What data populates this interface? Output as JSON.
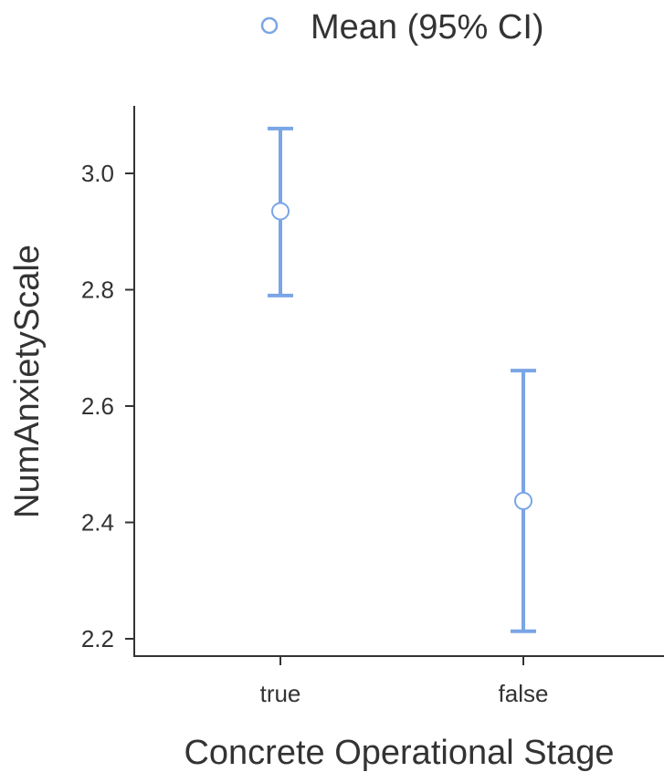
{
  "chart_data": {
    "type": "scatter",
    "xlabel": "Concrete Operational Stage",
    "ylabel": "NumAnxietyScale",
    "categories": [
      "true",
      "false"
    ],
    "series": [
      {
        "name": "Mean (95% CI)",
        "values": [
          2.935,
          2.437
        ],
        "ci_low": [
          2.79,
          2.213
        ],
        "ci_high": [
          3.077,
          2.661
        ]
      }
    ],
    "ylim": [
      2.17,
      3.12
    ],
    "yticks": [
      "2.2",
      "2.4",
      "2.6",
      "2.8",
      "3.0"
    ],
    "grid": false,
    "legend_position": "top"
  },
  "colors": {
    "series": "#7aa5e6",
    "axis": "#333333"
  }
}
